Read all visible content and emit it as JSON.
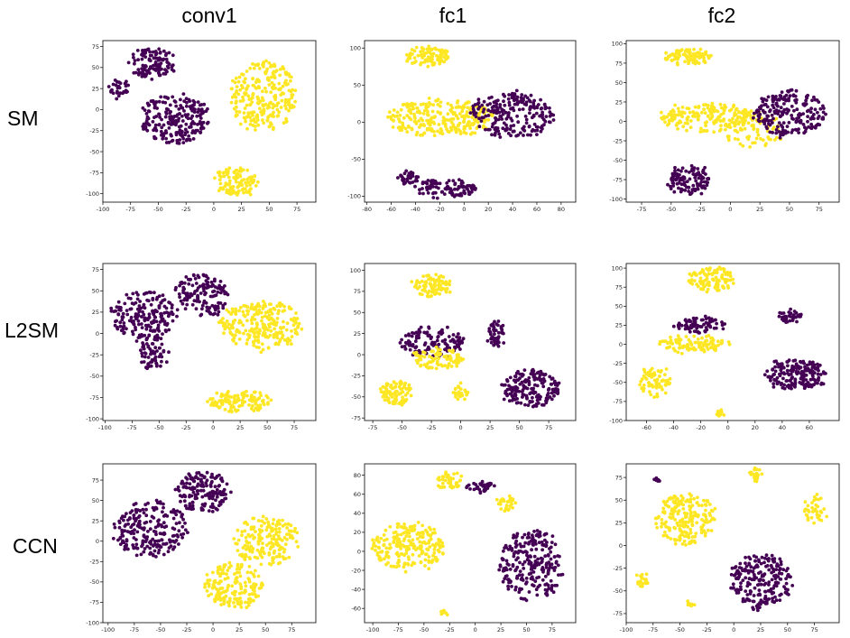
{
  "columns": [
    "conv1",
    "fc1",
    "fc2"
  ],
  "rows": [
    "SM",
    "L2SM",
    "CCN"
  ],
  "colors": {
    "class_a": "#440154",
    "class_b": "#fde725",
    "axis": "#000000"
  },
  "chart_data": [
    {
      "type": "scatter",
      "row": "SM",
      "column": "conv1",
      "xlim": [
        -100,
        92
      ],
      "ylim": [
        -110,
        82
      ],
      "xticks": [
        "-100",
        "-75",
        "-50",
        "-25",
        "0",
        "25",
        "50",
        "75"
      ],
      "yticks": [
        "75",
        "50",
        "25",
        "0",
        "-25",
        "-50",
        "-75",
        "-100"
      ],
      "xtick_values": [
        -100,
        -75,
        -50,
        -25,
        0,
        25,
        50,
        75
      ],
      "ytick_values": [
        75,
        50,
        25,
        0,
        -25,
        -50,
        -75,
        -100
      ],
      "clusters": [
        {
          "class": "purple",
          "cx": -55,
          "cy": 55,
          "rx": 22,
          "ry": 18,
          "n": 110
        },
        {
          "class": "purple",
          "cx": -85,
          "cy": 25,
          "rx": 9,
          "ry": 10,
          "n": 30
        },
        {
          "class": "purple",
          "cx": -35,
          "cy": -10,
          "rx": 30,
          "ry": 30,
          "n": 220
        },
        {
          "class": "yellow",
          "cx": 45,
          "cy": 15,
          "rx": 30,
          "ry": 42,
          "n": 260
        },
        {
          "class": "yellow",
          "cx": 20,
          "cy": -85,
          "rx": 20,
          "ry": 18,
          "n": 110
        }
      ]
    },
    {
      "type": "scatter",
      "row": "SM",
      "column": "fc1",
      "xlim": [
        -82,
        92
      ],
      "ylim": [
        -108,
        110
      ],
      "xticks": [
        "-80",
        "-60",
        "-40",
        "-20",
        "0",
        "20",
        "40",
        "60",
        "80"
      ],
      "yticks": [
        "100",
        "50",
        "0",
        "-50",
        "-100"
      ],
      "xtick_values": [
        -80,
        -60,
        -40,
        -20,
        0,
        20,
        40,
        60,
        80
      ],
      "ytick_values": [
        100,
        50,
        0,
        -50,
        -100
      ],
      "clusters": [
        {
          "class": "yellow",
          "cx": -30,
          "cy": 88,
          "rx": 18,
          "ry": 13,
          "n": 90
        },
        {
          "class": "yellow",
          "cx": -20,
          "cy": 5,
          "rx": 45,
          "ry": 25,
          "n": 260
        },
        {
          "class": "purple",
          "cx": 40,
          "cy": 10,
          "rx": 35,
          "ry": 30,
          "n": 220
        },
        {
          "class": "purple",
          "cx": -45,
          "cy": -75,
          "rx": 8,
          "ry": 8,
          "n": 35
        },
        {
          "class": "purple",
          "cx": -15,
          "cy": -90,
          "rx": 25,
          "ry": 13,
          "n": 100
        }
      ]
    },
    {
      "type": "scatter",
      "row": "SM",
      "column": "fc2",
      "xlim": [
        -88,
        92
      ],
      "ylim": [
        -104,
        104
      ],
      "xticks": [
        "-75",
        "-50",
        "-25",
        "0",
        "25",
        "50",
        "75"
      ],
      "yticks": [
        "100",
        "75",
        "50",
        "25",
        "0",
        "-25",
        "-50",
        "-75",
        "-100"
      ],
      "xtick_values": [
        -75,
        -50,
        -25,
        0,
        25,
        50,
        75
      ],
      "ytick_values": [
        100,
        75,
        50,
        25,
        0,
        -25,
        -50,
        -75,
        -100
      ],
      "clusters": [
        {
          "class": "yellow",
          "cx": -35,
          "cy": 83,
          "rx": 22,
          "ry": 10,
          "n": 90
        },
        {
          "class": "yellow",
          "cx": -20,
          "cy": 5,
          "rx": 40,
          "ry": 18,
          "n": 180
        },
        {
          "class": "yellow",
          "cx": 20,
          "cy": -10,
          "rx": 25,
          "ry": 25,
          "n": 80
        },
        {
          "class": "purple",
          "cx": 50,
          "cy": 10,
          "rx": 30,
          "ry": 30,
          "n": 200
        },
        {
          "class": "purple",
          "cx": -35,
          "cy": -75,
          "rx": 18,
          "ry": 18,
          "n": 110
        }
      ]
    },
    {
      "type": "scatter",
      "row": "L2SM",
      "column": "conv1",
      "xlim": [
        -102,
        95
      ],
      "ylim": [
        -102,
        82
      ],
      "xticks": [
        "-100",
        "-75",
        "-50",
        "-25",
        "0",
        "25",
        "50",
        "75"
      ],
      "yticks": [
        "75",
        "50",
        "25",
        "0",
        "-25",
        "-50",
        "-75",
        "-100"
      ],
      "xtick_values": [
        -100,
        -75,
        -50,
        -25,
        0,
        25,
        50,
        75
      ],
      "ytick_values": [
        75,
        50,
        25,
        0,
        -25,
        -50,
        -75,
        -100
      ],
      "clusters": [
        {
          "class": "purple",
          "cx": -65,
          "cy": 20,
          "rx": 30,
          "ry": 30,
          "n": 200
        },
        {
          "class": "purple",
          "cx": -10,
          "cy": 45,
          "rx": 25,
          "ry": 25,
          "n": 140
        },
        {
          "class": "purple",
          "cx": -55,
          "cy": -25,
          "rx": 12,
          "ry": 18,
          "n": 60
        },
        {
          "class": "yellow",
          "cx": 45,
          "cy": 10,
          "rx": 38,
          "ry": 30,
          "n": 240
        },
        {
          "class": "yellow",
          "cx": 25,
          "cy": -80,
          "rx": 30,
          "ry": 12,
          "n": 120
        }
      ]
    },
    {
      "type": "scatter",
      "row": "L2SM",
      "column": "fc1",
      "xlim": [
        -82,
        98
      ],
      "ylim": [
        -78,
        108
      ],
      "xticks": [
        "-75",
        "-50",
        "-25",
        "0",
        "25",
        "50",
        "75"
      ],
      "yticks": [
        "100",
        "75",
        "50",
        "25",
        "0",
        "-25",
        "-50",
        "-75"
      ],
      "xtick_values": [
        -75,
        -50,
        -25,
        0,
        25,
        50,
        75
      ],
      "ytick_values": [
        100,
        75,
        50,
        25,
        0,
        -25,
        -50,
        -75
      ],
      "clusters": [
        {
          "class": "yellow",
          "cx": -25,
          "cy": 82,
          "rx": 17,
          "ry": 13,
          "n": 90
        },
        {
          "class": "purple",
          "cx": -25,
          "cy": 15,
          "rx": 28,
          "ry": 18,
          "n": 120
        },
        {
          "class": "purple",
          "cx": 30,
          "cy": 25,
          "rx": 7,
          "ry": 15,
          "n": 50
        },
        {
          "class": "yellow",
          "cx": -20,
          "cy": -5,
          "rx": 22,
          "ry": 12,
          "n": 90
        },
        {
          "class": "yellow",
          "cx": -55,
          "cy": -45,
          "rx": 13,
          "ry": 14,
          "n": 90
        },
        {
          "class": "yellow",
          "cx": 0,
          "cy": -45,
          "rx": 5,
          "ry": 9,
          "n": 25
        },
        {
          "class": "purple",
          "cx": 60,
          "cy": -40,
          "rx": 25,
          "ry": 22,
          "n": 180
        }
      ]
    },
    {
      "type": "scatter",
      "row": "L2SM",
      "column": "fc2",
      "xlim": [
        -75,
        82
      ],
      "ylim": [
        -100,
        106
      ],
      "xticks": [
        "-60",
        "-40",
        "-20",
        "0",
        "20",
        "40",
        "60"
      ],
      "yticks": [
        "100",
        "75",
        "50",
        "25",
        "0",
        "-25",
        "-50",
        "-75",
        "-100"
      ],
      "xtick_values": [
        -60,
        -40,
        -20,
        0,
        20,
        40,
        60
      ],
      "ytick_values": [
        100,
        75,
        50,
        25,
        0,
        -25,
        -50,
        -75,
        -100
      ],
      "clusters": [
        {
          "class": "yellow",
          "cx": -12,
          "cy": 85,
          "rx": 17,
          "ry": 16,
          "n": 110
        },
        {
          "class": "purple",
          "cx": -20,
          "cy": 25,
          "rx": 20,
          "ry": 10,
          "n": 80
        },
        {
          "class": "yellow",
          "cx": -25,
          "cy": 0,
          "rx": 25,
          "ry": 12,
          "n": 100
        },
        {
          "class": "yellow",
          "cx": -55,
          "cy": -50,
          "rx": 12,
          "ry": 20,
          "n": 70
        },
        {
          "class": "yellow",
          "cx": -5,
          "cy": -90,
          "rx": 3,
          "ry": 3,
          "n": 10
        },
        {
          "class": "purple",
          "cx": 45,
          "cy": 37,
          "rx": 8,
          "ry": 8,
          "n": 35
        },
        {
          "class": "purple",
          "cx": 50,
          "cy": -40,
          "rx": 22,
          "ry": 20,
          "n": 180
        }
      ]
    },
    {
      "type": "scatter",
      "row": "CCN",
      "column": "conv1",
      "xlim": [
        -105,
        98
      ],
      "ylim": [
        -100,
        95
      ],
      "xticks": [
        "-100",
        "-75",
        "-50",
        "-25",
        "0",
        "25",
        "50",
        "75"
      ],
      "yticks": [
        "75",
        "50",
        "25",
        "0",
        "-25",
        "-50",
        "-75",
        "-100"
      ],
      "xtick_values": [
        -100,
        -75,
        -50,
        -25,
        0,
        25,
        50,
        75
      ],
      "ytick_values": [
        75,
        50,
        25,
        0,
        -25,
        -50,
        -75,
        -100
      ],
      "clusters": [
        {
          "class": "purple",
          "cx": -60,
          "cy": 15,
          "rx": 35,
          "ry": 35,
          "n": 220
        },
        {
          "class": "purple",
          "cx": -10,
          "cy": 60,
          "rx": 25,
          "ry": 25,
          "n": 160
        },
        {
          "class": "yellow",
          "cx": 50,
          "cy": 0,
          "rx": 32,
          "ry": 30,
          "n": 180
        },
        {
          "class": "yellow",
          "cx": 20,
          "cy": -55,
          "rx": 28,
          "ry": 28,
          "n": 180
        }
      ]
    },
    {
      "type": "scatter",
      "row": "CCN",
      "column": "fc1",
      "xlim": [
        -108,
        98
      ],
      "ylim": [
        -75,
        92
      ],
      "xticks": [
        "-100",
        "-75",
        "-50",
        "-25",
        "0",
        "25",
        "50",
        "75"
      ],
      "yticks": [
        "80",
        "60",
        "40",
        "20",
        "0",
        "-20",
        "-40",
        "-60"
      ],
      "xtick_values": [
        -100,
        -75,
        -50,
        -25,
        0,
        25,
        50,
        75
      ],
      "ytick_values": [
        80,
        60,
        40,
        20,
        0,
        -20,
        -40,
        -60
      ],
      "clusters": [
        {
          "class": "yellow",
          "cx": -65,
          "cy": 5,
          "rx": 35,
          "ry": 25,
          "n": 220
        },
        {
          "class": "yellow",
          "cx": -25,
          "cy": 75,
          "rx": 12,
          "ry": 10,
          "n": 40
        },
        {
          "class": "purple",
          "cx": 5,
          "cy": 68,
          "rx": 14,
          "ry": 5,
          "n": 35
        },
        {
          "class": "yellow",
          "cx": 30,
          "cy": 50,
          "rx": 10,
          "ry": 8,
          "n": 30
        },
        {
          "class": "yellow",
          "cx": -30,
          "cy": -65,
          "rx": 4,
          "ry": 4,
          "n": 8
        },
        {
          "class": "purple",
          "cx": 55,
          "cy": -15,
          "rx": 32,
          "ry": 38,
          "n": 240
        }
      ]
    },
    {
      "type": "scatter",
      "row": "CCN",
      "column": "fc2",
      "xlim": [
        -100,
        98
      ],
      "ylim": [
        -85,
        90
      ],
      "xticks": [
        "-100",
        "-75",
        "-50",
        "-25",
        "0",
        "25",
        "50",
        "75"
      ],
      "yticks": [
        "75",
        "50",
        "25",
        "0",
        "-25",
        "-50",
        "-75"
      ],
      "xtick_values": [
        -100,
        -75,
        -50,
        -25,
        0,
        25,
        50,
        75
      ],
      "ytick_values": [
        75,
        50,
        25,
        0,
        -25,
        -50,
        -75
      ],
      "clusters": [
        {
          "class": "yellow",
          "cx": -45,
          "cy": 30,
          "rx": 28,
          "ry": 28,
          "n": 200
        },
        {
          "class": "yellow",
          "cx": -85,
          "cy": -38,
          "rx": 5,
          "ry": 8,
          "n": 25
        },
        {
          "class": "purple",
          "cx": -72,
          "cy": 72,
          "rx": 3,
          "ry": 3,
          "n": 6
        },
        {
          "class": "yellow",
          "cx": 20,
          "cy": 78,
          "rx": 6,
          "ry": 8,
          "n": 25
        },
        {
          "class": "yellow",
          "cx": -40,
          "cy": -65,
          "rx": 3,
          "ry": 3,
          "n": 8
        },
        {
          "class": "yellow",
          "cx": 75,
          "cy": 40,
          "rx": 12,
          "ry": 15,
          "n": 40
        },
        {
          "class": "purple",
          "cx": 25,
          "cy": -40,
          "rx": 28,
          "ry": 30,
          "n": 220
        }
      ]
    }
  ]
}
